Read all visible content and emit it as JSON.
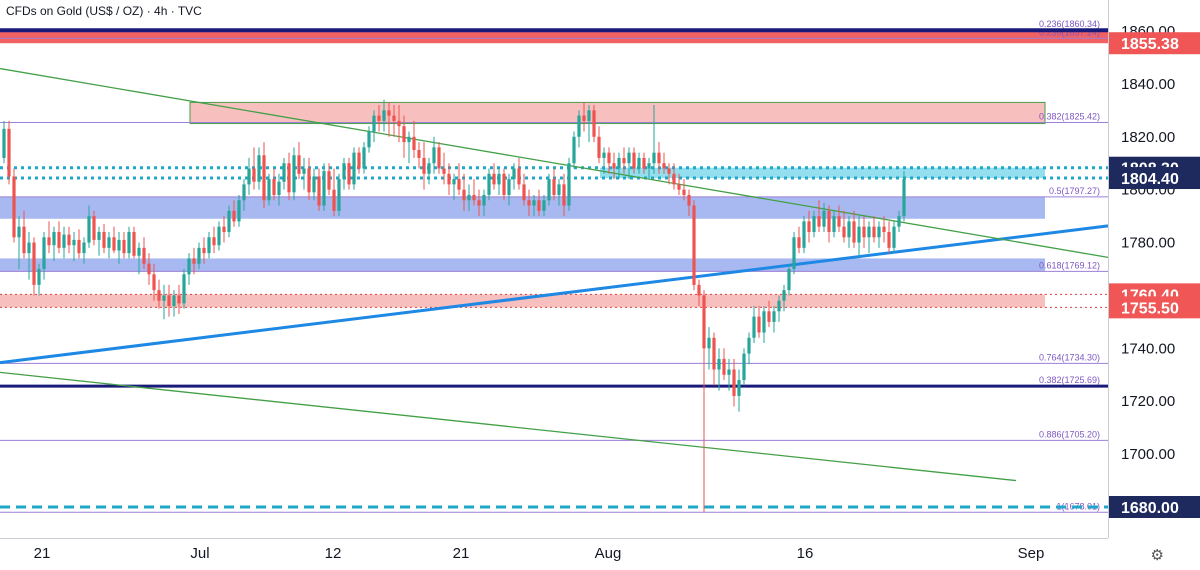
{
  "header": {
    "title": "CFDs on Gold (US$ / OZ) · 4h · TVC"
  },
  "settings_icon": "gear-icon",
  "chart_data": {
    "type": "candlestick",
    "title": "CFDs on Gold (US$ / OZ) · 4h · TVC",
    "ylim": [
      1674,
      1868
    ],
    "xlim": [
      0,
      1108
    ],
    "grid": false,
    "colors": {
      "up": "#26a69a",
      "down": "#ef5350",
      "uptrend": "#1e88e5",
      "downtrend": "#43a047",
      "fib": "#7e57c2",
      "support_zone": "#3d63e0",
      "resistance_zone": "#f28b8b",
      "current": "#1ea7c7",
      "navy": "#1a1a7a"
    },
    "x_ticks": [
      {
        "label": "21",
        "x": 42
      },
      {
        "label": "Jul",
        "x": 200
      },
      {
        "label": "12",
        "x": 333
      },
      {
        "label": "21",
        "x": 461
      },
      {
        "label": "Aug",
        "x": 608
      },
      {
        "label": "16",
        "x": 805
      },
      {
        "label": "Sep",
        "x": 1031
      }
    ],
    "y_ticks": [
      1860,
      1840,
      1820,
      1800,
      1780,
      1760,
      1740,
      1720,
      1700
    ],
    "price_labels": [
      {
        "label": "1855.38",
        "value": 1855.38,
        "color": "#f05656"
      },
      {
        "label": "1808.30",
        "value": 1808.3,
        "color": "#1e2a5e"
      },
      {
        "label": "1804.40",
        "value": 1804.4,
        "color": "#1e2a5e"
      },
      {
        "label": "1760.40",
        "value": 1760.4,
        "color": "#f05656"
      },
      {
        "label": "1755.50",
        "value": 1755.5,
        "color": "#f05656"
      },
      {
        "label": "1680.00",
        "value": 1680.0,
        "color": "#1e2a5e"
      }
    ],
    "fib_levels": [
      {
        "label": "0.236(1860.34)",
        "value": 1860.34
      },
      {
        "label": "0.236(1857.24)",
        "value": 1857.24
      },
      {
        "label": "0.382(1825.42)",
        "value": 1825.42
      },
      {
        "label": "0.5(1797.27)",
        "value": 1797.27
      },
      {
        "label": "0.618(1769.12)",
        "value": 1769.12
      },
      {
        "label": "0.764(1734.30)",
        "value": 1734.3
      },
      {
        "label": "0.382(1725.69)",
        "value": 1725.69
      },
      {
        "label": "0.886(1705.20)",
        "value": 1705.2
      },
      {
        "label": "1(1678.01)",
        "value": 1678.01
      }
    ],
    "zones": [
      {
        "kind": "resistance",
        "from": 1855.38,
        "to": 1860.0,
        "x0": 0,
        "x1": 1108
      },
      {
        "kind": "resistance",
        "from": 1825.0,
        "to": 1833.0,
        "x0": 190,
        "x1": 1045
      },
      {
        "kind": "support",
        "from": 1789.0,
        "to": 1797.3,
        "x0": 0,
        "x1": 1045
      },
      {
        "kind": "support",
        "from": 1769.1,
        "to": 1774.0,
        "x0": 0,
        "x1": 1045
      },
      {
        "kind": "resistance",
        "from": 1755.5,
        "to": 1760.4,
        "x0": 0,
        "x1": 1045
      },
      {
        "kind": "current",
        "from": 1804.4,
        "to": 1808.3,
        "x0": 600,
        "x1": 1045
      }
    ],
    "trendlines": [
      {
        "name": "uptrend",
        "x0": 0,
        "y0": 1734.6,
        "x1": 1108,
        "y1": 1786.3,
        "color": "#1e88e5",
        "width": 3
      },
      {
        "name": "downtrend-upper",
        "x0": 0,
        "y0": 1845.8,
        "x1": 1108,
        "y1": 1774.4,
        "color": "#43a047",
        "width": 1.3
      },
      {
        "name": "downtrend-lower",
        "x0": 0,
        "y0": 1730.9,
        "x1": 1016,
        "y1": 1690.0,
        "color": "#43a047",
        "width": 1.3
      }
    ],
    "candles": [
      [
        4,
        1812,
        1826,
        1810,
        1823
      ],
      [
        9,
        1823,
        1826,
        1802,
        1805
      ],
      [
        14,
        1805,
        1808,
        1780,
        1782
      ],
      [
        19,
        1782,
        1790,
        1770,
        1786
      ],
      [
        24,
        1786,
        1792,
        1774,
        1776
      ],
      [
        29,
        1776,
        1784,
        1766,
        1780
      ],
      [
        34,
        1780,
        1782,
        1760,
        1764
      ],
      [
        39,
        1764,
        1772,
        1760,
        1770
      ],
      [
        44,
        1770,
        1784,
        1766,
        1782
      ],
      [
        49,
        1782,
        1788,
        1776,
        1779
      ],
      [
        54,
        1779,
        1786,
        1773,
        1784
      ],
      [
        59,
        1784,
        1788,
        1776,
        1778
      ],
      [
        64,
        1778,
        1786,
        1774,
        1783
      ],
      [
        69,
        1783,
        1786,
        1776,
        1779
      ],
      [
        74,
        1779,
        1784,
        1773,
        1781
      ],
      [
        79,
        1781,
        1785,
        1774,
        1776
      ],
      [
        84,
        1776,
        1782,
        1772,
        1780
      ],
      [
        89,
        1780,
        1794,
        1778,
        1790
      ],
      [
        94,
        1790,
        1792,
        1779,
        1781
      ],
      [
        99,
        1781,
        1786,
        1775,
        1784
      ],
      [
        104,
        1784,
        1787,
        1776,
        1778
      ],
      [
        109,
        1778,
        1784,
        1774,
        1782
      ],
      [
        114,
        1782,
        1786,
        1776,
        1777
      ],
      [
        119,
        1777,
        1784,
        1772,
        1781
      ],
      [
        124,
        1781,
        1784,
        1774,
        1776
      ],
      [
        129,
        1776,
        1786,
        1774,
        1784
      ],
      [
        134,
        1784,
        1786,
        1774,
        1775
      ],
      [
        139,
        1775,
        1780,
        1768,
        1778
      ],
      [
        144,
        1778,
        1782,
        1770,
        1772
      ],
      [
        149,
        1772,
        1776,
        1764,
        1768
      ],
      [
        154,
        1768,
        1772,
        1758,
        1762
      ],
      [
        159,
        1762,
        1766,
        1755,
        1758
      ],
      [
        164,
        1758,
        1764,
        1751,
        1760
      ],
      [
        169,
        1760,
        1764,
        1752,
        1756
      ],
      [
        174,
        1756,
        1762,
        1752,
        1760
      ],
      [
        179,
        1760,
        1764,
        1753,
        1757
      ],
      [
        184,
        1757,
        1770,
        1755,
        1768
      ],
      [
        189,
        1768,
        1776,
        1764,
        1774
      ],
      [
        194,
        1774,
        1778,
        1768,
        1772
      ],
      [
        199,
        1772,
        1780,
        1770,
        1778
      ],
      [
        204,
        1778,
        1782,
        1772,
        1776
      ],
      [
        209,
        1776,
        1784,
        1774,
        1782
      ],
      [
        214,
        1782,
        1786,
        1776,
        1779
      ],
      [
        219,
        1779,
        1788,
        1777,
        1786
      ],
      [
        224,
        1786,
        1790,
        1780,
        1784
      ],
      [
        229,
        1784,
        1794,
        1782,
        1792
      ],
      [
        234,
        1792,
        1796,
        1786,
        1788
      ],
      [
        239,
        1788,
        1798,
        1786,
        1796
      ],
      [
        244,
        1796,
        1804,
        1792,
        1802
      ],
      [
        249,
        1802,
        1812,
        1798,
        1808
      ],
      [
        254,
        1808,
        1816,
        1800,
        1803
      ],
      [
        259,
        1803,
        1816,
        1800,
        1813
      ],
      [
        264,
        1813,
        1818,
        1793,
        1796
      ],
      [
        269,
        1796,
        1806,
        1794,
        1804
      ],
      [
        274,
        1804,
        1808,
        1796,
        1798
      ],
      [
        279,
        1798,
        1806,
        1794,
        1803
      ],
      [
        284,
        1803,
        1812,
        1800,
        1810
      ],
      [
        289,
        1810,
        1814,
        1796,
        1799
      ],
      [
        294,
        1799,
        1816,
        1796,
        1813
      ],
      [
        299,
        1813,
        1818,
        1804,
        1806
      ],
      [
        304,
        1806,
        1812,
        1800,
        1808
      ],
      [
        309,
        1808,
        1812,
        1796,
        1799
      ],
      [
        314,
        1799,
        1808,
        1796,
        1805
      ],
      [
        319,
        1805,
        1808,
        1792,
        1794
      ],
      [
        324,
        1794,
        1810,
        1792,
        1807
      ],
      [
        329,
        1807,
        1810,
        1798,
        1800
      ],
      [
        334,
        1800,
        1808,
        1790,
        1792
      ],
      [
        339,
        1792,
        1806,
        1790,
        1804
      ],
      [
        344,
        1804,
        1812,
        1800,
        1810
      ],
      [
        349,
        1810,
        1812,
        1800,
        1802
      ],
      [
        354,
        1802,
        1816,
        1800,
        1814
      ],
      [
        359,
        1814,
        1816,
        1806,
        1808
      ],
      [
        364,
        1808,
        1818,
        1806,
        1816
      ],
      [
        369,
        1816,
        1824,
        1814,
        1822
      ],
      [
        374,
        1822,
        1830,
        1818,
        1828
      ],
      [
        379,
        1828,
        1832,
        1822,
        1826
      ],
      [
        384,
        1826,
        1834,
        1822,
        1830
      ],
      [
        389,
        1830,
        1833,
        1820,
        1828
      ],
      [
        394,
        1828,
        1832,
        1820,
        1826
      ],
      [
        399,
        1826,
        1832,
        1818,
        1824
      ],
      [
        404,
        1824,
        1828,
        1812,
        1818
      ],
      [
        409,
        1818,
        1822,
        1810,
        1820
      ],
      [
        414,
        1820,
        1826,
        1812,
        1815
      ],
      [
        419,
        1815,
        1818,
        1808,
        1812
      ],
      [
        424,
        1812,
        1818,
        1800,
        1806
      ],
      [
        429,
        1806,
        1812,
        1802,
        1810
      ],
      [
        434,
        1810,
        1820,
        1806,
        1816
      ],
      [
        439,
        1816,
        1818,
        1806,
        1808
      ],
      [
        444,
        1808,
        1814,
        1802,
        1806
      ],
      [
        449,
        1806,
        1810,
        1798,
        1802
      ],
      [
        454,
        1802,
        1806,
        1796,
        1804
      ],
      [
        459,
        1804,
        1810,
        1798,
        1800
      ],
      [
        464,
        1800,
        1806,
        1792,
        1796
      ],
      [
        469,
        1796,
        1802,
        1792,
        1798
      ],
      [
        474,
        1798,
        1804,
        1794,
        1796
      ],
      [
        479,
        1796,
        1800,
        1790,
        1794
      ],
      [
        484,
        1794,
        1800,
        1790,
        1798
      ],
      [
        489,
        1798,
        1808,
        1796,
        1806
      ],
      [
        494,
        1806,
        1810,
        1800,
        1802
      ],
      [
        499,
        1802,
        1808,
        1798,
        1806
      ],
      [
        504,
        1806,
        1808,
        1796,
        1798
      ],
      [
        509,
        1798,
        1806,
        1794,
        1804
      ],
      [
        514,
        1804,
        1810,
        1800,
        1808
      ],
      [
        519,
        1808,
        1812,
        1800,
        1802
      ],
      [
        524,
        1802,
        1806,
        1794,
        1796
      ],
      [
        529,
        1796,
        1800,
        1790,
        1794
      ],
      [
        534,
        1794,
        1798,
        1790,
        1796
      ],
      [
        539,
        1796,
        1800,
        1790,
        1792
      ],
      [
        544,
        1792,
        1798,
        1790,
        1796
      ],
      [
        549,
        1796,
        1806,
        1794,
        1804
      ],
      [
        554,
        1804,
        1808,
        1796,
        1798
      ],
      [
        559,
        1798,
        1804,
        1794,
        1802
      ],
      [
        564,
        1802,
        1806,
        1790,
        1794
      ],
      [
        569,
        1794,
        1812,
        1792,
        1810
      ],
      [
        574,
        1810,
        1822,
        1808,
        1820
      ],
      [
        579,
        1820,
        1830,
        1816,
        1828
      ],
      [
        584,
        1828,
        1833,
        1822,
        1826
      ],
      [
        589,
        1826,
        1832,
        1818,
        1830
      ],
      [
        594,
        1830,
        1832,
        1818,
        1820
      ],
      [
        599,
        1820,
        1824,
        1810,
        1812
      ],
      [
        604,
        1812,
        1816,
        1806,
        1814
      ],
      [
        609,
        1814,
        1816,
        1806,
        1810
      ],
      [
        614,
        1810,
        1814,
        1804,
        1808
      ],
      [
        619,
        1808,
        1814,
        1804,
        1812
      ],
      [
        624,
        1812,
        1816,
        1806,
        1810
      ],
      [
        629,
        1810,
        1816,
        1804,
        1814
      ],
      [
        634,
        1814,
        1816,
        1806,
        1808
      ],
      [
        639,
        1808,
        1814,
        1806,
        1812
      ],
      [
        644,
        1812,
        1814,
        1806,
        1808
      ],
      [
        649,
        1808,
        1812,
        1804,
        1810
      ],
      [
        654,
        1810,
        1832,
        1806,
        1814
      ],
      [
        659,
        1814,
        1818,
        1806,
        1810
      ],
      [
        664,
        1810,
        1814,
        1806,
        1808
      ],
      [
        669,
        1808,
        1810,
        1802,
        1806
      ],
      [
        674,
        1806,
        1810,
        1800,
        1802
      ],
      [
        679,
        1802,
        1806,
        1798,
        1800
      ],
      [
        684,
        1800,
        1804,
        1796,
        1798
      ],
      [
        689,
        1798,
        1800,
        1790,
        1794
      ],
      [
        694,
        1794,
        1796,
        1762,
        1764
      ],
      [
        699,
        1764,
        1766,
        1756,
        1760
      ],
      [
        704,
        1760,
        1762,
        1678,
        1740
      ],
      [
        709,
        1740,
        1748,
        1732,
        1744
      ],
      [
        714,
        1744,
        1746,
        1726,
        1732
      ],
      [
        719,
        1732,
        1740,
        1724,
        1736
      ],
      [
        724,
        1736,
        1740,
        1728,
        1730
      ],
      [
        729,
        1730,
        1736,
        1724,
        1732
      ],
      [
        734,
        1732,
        1736,
        1718,
        1722
      ],
      [
        739,
        1722,
        1732,
        1716,
        1728
      ],
      [
        744,
        1728,
        1740,
        1726,
        1738
      ],
      [
        749,
        1738,
        1746,
        1734,
        1744
      ],
      [
        754,
        1744,
        1756,
        1742,
        1752
      ],
      [
        759,
        1752,
        1756,
        1744,
        1746
      ],
      [
        764,
        1746,
        1756,
        1742,
        1754
      ],
      [
        769,
        1754,
        1758,
        1748,
        1750
      ],
      [
        774,
        1750,
        1756,
        1746,
        1754
      ],
      [
        779,
        1754,
        1760,
        1750,
        1758
      ],
      [
        784,
        1758,
        1764,
        1754,
        1762
      ],
      [
        789,
        1762,
        1772,
        1760,
        1770
      ],
      [
        794,
        1770,
        1784,
        1768,
        1782
      ],
      [
        799,
        1782,
        1786,
        1776,
        1778
      ],
      [
        804,
        1778,
        1790,
        1776,
        1788
      ],
      [
        809,
        1788,
        1792,
        1780,
        1784
      ],
      [
        814,
        1784,
        1792,
        1782,
        1790
      ],
      [
        819,
        1790,
        1796,
        1784,
        1786
      ],
      [
        824,
        1786,
        1795,
        1784,
        1792
      ],
      [
        829,
        1792,
        1794,
        1780,
        1784
      ],
      [
        834,
        1784,
        1792,
        1782,
        1790
      ],
      [
        839,
        1790,
        1794,
        1784,
        1786
      ],
      [
        844,
        1786,
        1792,
        1780,
        1782
      ],
      [
        849,
        1782,
        1790,
        1778,
        1788
      ],
      [
        854,
        1788,
        1792,
        1778,
        1780
      ],
      [
        859,
        1780,
        1790,
        1774,
        1786
      ],
      [
        864,
        1786,
        1790,
        1778,
        1782
      ],
      [
        869,
        1782,
        1788,
        1776,
        1786
      ],
      [
        874,
        1786,
        1790,
        1780,
        1782
      ],
      [
        879,
        1782,
        1788,
        1778,
        1786
      ],
      [
        884,
        1786,
        1790,
        1780,
        1784
      ],
      [
        889,
        1784,
        1788,
        1776,
        1778
      ],
      [
        894,
        1778,
        1788,
        1776,
        1786
      ],
      [
        899,
        1786,
        1792,
        1784,
        1790
      ],
      [
        904,
        1790,
        1807,
        1788,
        1804
      ]
    ]
  }
}
